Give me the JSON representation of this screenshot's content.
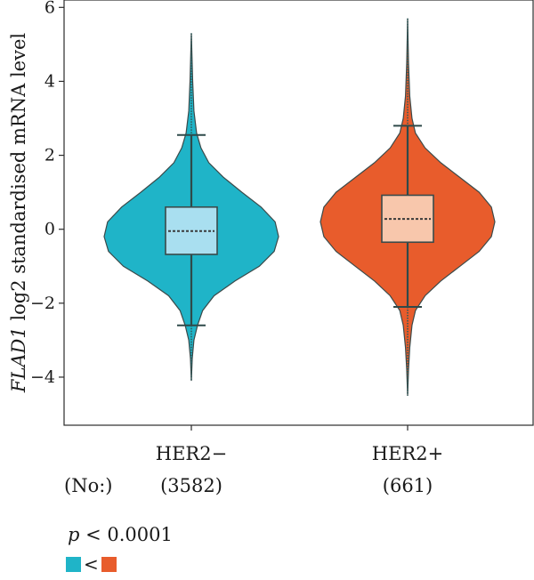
{
  "chart_data": {
    "type": "violin",
    "ylabel_italic": "FLAD1",
    "ylabel_rest": " log2 standardised mRNA level",
    "ylim": [
      -5.3,
      6.2
    ],
    "yticks": [
      6,
      4,
      2,
      0,
      -2,
      -4
    ],
    "ytick_labels": [
      "6",
      "4",
      "2",
      "0",
      "−2",
      "−4"
    ],
    "categories": [
      "HER2−",
      "HER2+"
    ],
    "counts_label": "(No:)",
    "counts": [
      "(3582)",
      "(661)"
    ],
    "series": [
      {
        "category": "HER2−",
        "color": "#1fb4c8",
        "box_color": "#a9dff0",
        "median": -0.05,
        "q1": -0.68,
        "q3": 0.6,
        "whisker_low": -2.6,
        "whisker_high": 2.55,
        "min": -4.1,
        "max": 5.3,
        "density": [
          [
            -4.1,
            0.0
          ],
          [
            -3.5,
            0.01
          ],
          [
            -3.0,
            0.03
          ],
          [
            -2.6,
            0.07
          ],
          [
            -2.2,
            0.13
          ],
          [
            -1.8,
            0.26
          ],
          [
            -1.4,
            0.5
          ],
          [
            -1.0,
            0.78
          ],
          [
            -0.6,
            0.95
          ],
          [
            -0.2,
            1.0
          ],
          [
            0.2,
            0.96
          ],
          [
            0.6,
            0.8
          ],
          [
            1.0,
            0.58
          ],
          [
            1.4,
            0.37
          ],
          [
            1.8,
            0.2
          ],
          [
            2.2,
            0.11
          ],
          [
            2.6,
            0.06
          ],
          [
            3.2,
            0.03
          ],
          [
            4.0,
            0.015
          ],
          [
            5.3,
            0.0
          ]
        ]
      },
      {
        "category": "HER2+",
        "color": "#e85c2c",
        "box_color": "#f8c7ac",
        "median": 0.28,
        "q1": -0.35,
        "q3": 0.92,
        "whisker_low": -2.1,
        "whisker_high": 2.8,
        "min": -4.5,
        "max": 5.7,
        "density": [
          [
            -4.5,
            0.0
          ],
          [
            -3.8,
            0.01
          ],
          [
            -3.2,
            0.025
          ],
          [
            -2.6,
            0.05
          ],
          [
            -2.2,
            0.09
          ],
          [
            -1.8,
            0.2
          ],
          [
            -1.4,
            0.38
          ],
          [
            -1.0,
            0.6
          ],
          [
            -0.6,
            0.82
          ],
          [
            -0.2,
            0.96
          ],
          [
            0.2,
            1.0
          ],
          [
            0.6,
            0.96
          ],
          [
            1.0,
            0.82
          ],
          [
            1.4,
            0.6
          ],
          [
            1.8,
            0.38
          ],
          [
            2.2,
            0.2
          ],
          [
            2.6,
            0.09
          ],
          [
            3.0,
            0.05
          ],
          [
            3.6,
            0.025
          ],
          [
            4.5,
            0.01
          ],
          [
            5.7,
            0.0
          ]
        ]
      }
    ],
    "grid": false
  },
  "annotation": {
    "p_symbol": "p",
    "p_rest": " < 0.0001",
    "comparison_symbol": "<"
  }
}
